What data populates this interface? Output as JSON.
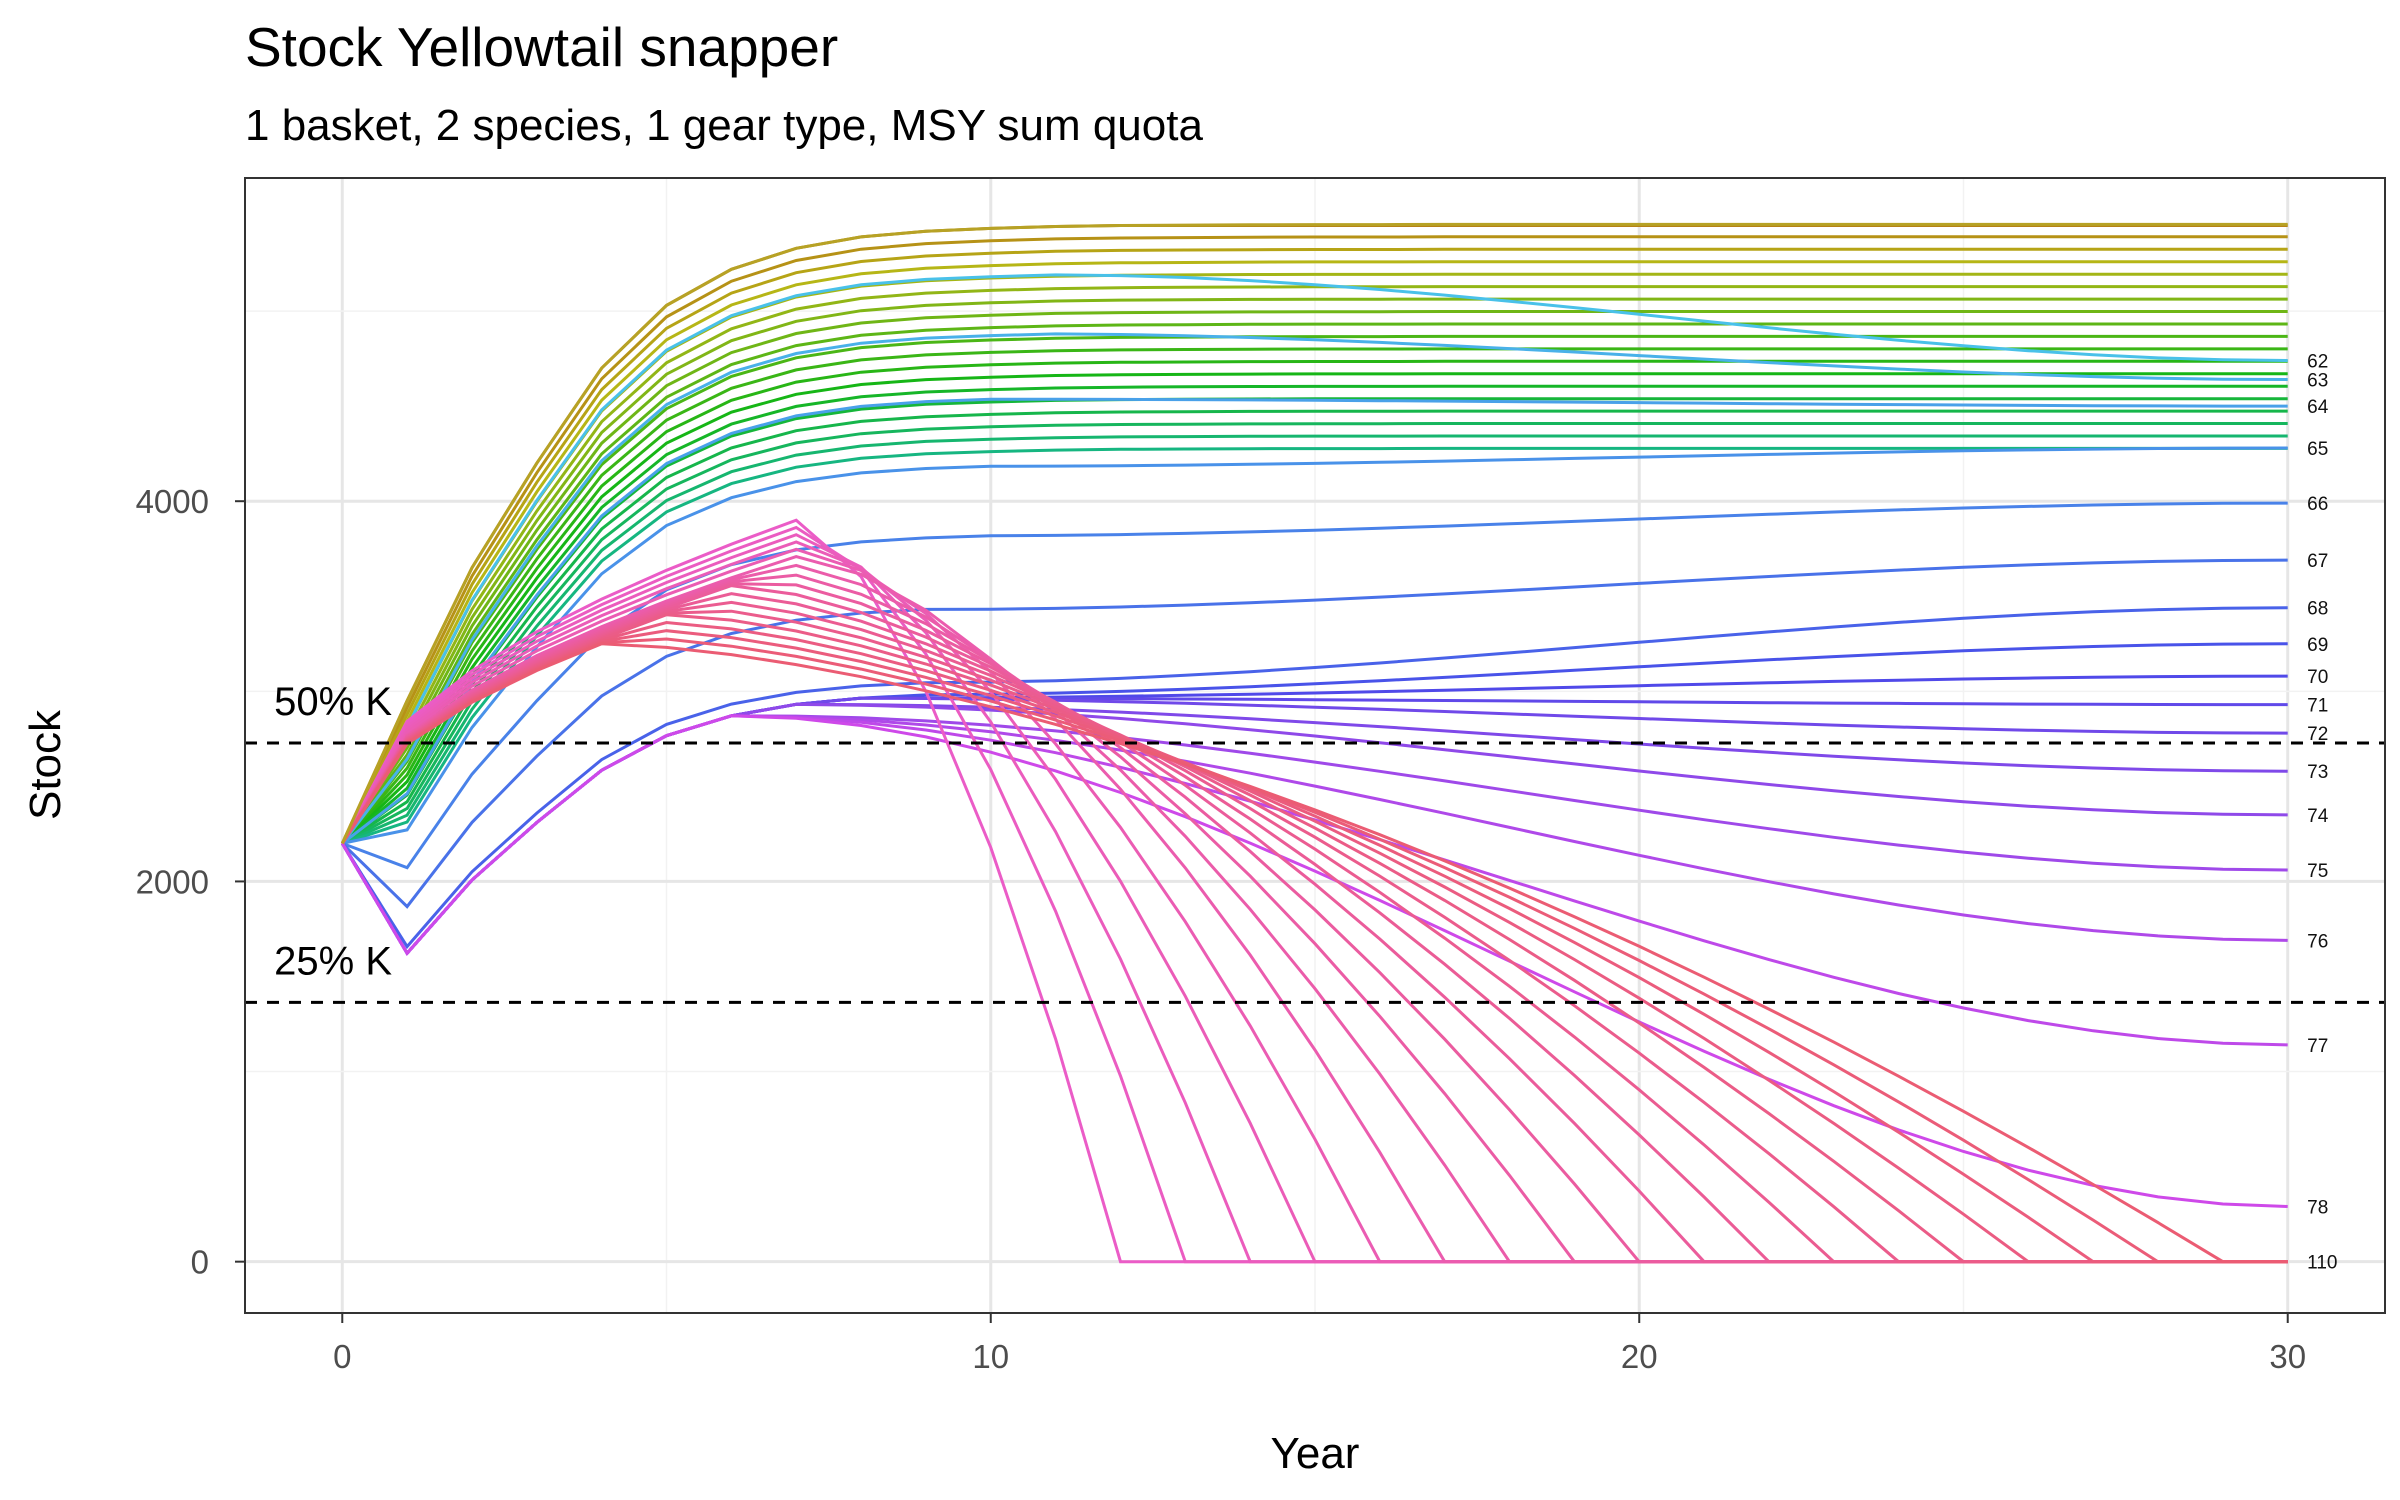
{
  "chart_data": {
    "type": "line",
    "title": "Stock Yellowtail snapper",
    "subtitle": "1 basket, 2 species, 1 gear type, MSY sum quota",
    "xlabel": "Year",
    "ylabel": "Stock",
    "xlim": [
      -1.5,
      31.5
    ],
    "ylim": [
      -270,
      5700
    ],
    "x_ticks": [
      0,
      10,
      20,
      30
    ],
    "y_ticks": [
      0,
      2000,
      4000
    ],
    "grid": true,
    "legend": "none (direct end-of-line labels)",
    "start_stock": 2200,
    "capacity_curve": [
      2200,
      2950,
      3650,
      4200,
      4700,
      5030,
      5220,
      5330,
      5390,
      5420,
      5435,
      5445,
      5450,
      5452,
      5454,
      5455,
      5455,
      5456,
      5456,
      5456,
      5456,
      5456,
      5456,
      5456,
      5456,
      5456,
      5456,
      5456,
      5456,
      5456,
      5456
    ],
    "reference_lines": [
      {
        "label": "50% K",
        "value": 2728,
        "style": "dashed"
      },
      {
        "label": "25% K",
        "value": 1364,
        "style": "dashed"
      }
    ],
    "series_labels": [
      {
        "name": "62",
        "end_value": 4740
      },
      {
        "name": "63",
        "end_value": 4640
      },
      {
        "name": "64",
        "end_value": 4500
      },
      {
        "name": "65",
        "end_value": 4280
      },
      {
        "name": "66",
        "end_value": 3990
      },
      {
        "name": "67",
        "end_value": 3690
      },
      {
        "name": "68",
        "end_value": 3440
      },
      {
        "name": "69",
        "end_value": 3250
      },
      {
        "name": "70",
        "end_value": 3080
      },
      {
        "name": "71",
        "end_value": 2930
      },
      {
        "name": "72",
        "end_value": 2780
      },
      {
        "name": "73",
        "end_value": 2580
      },
      {
        "name": "74",
        "end_value": 2350
      },
      {
        "name": "75",
        "end_value": 2060
      },
      {
        "name": "76",
        "end_value": 1690
      },
      {
        "name": "77",
        "end_value": 1140
      },
      {
        "name": "78",
        "end_value": 290
      },
      {
        "name": "110",
        "end_value": 0
      }
    ],
    "collapsed_series": [
      {
        "collapse_year": 12,
        "end_value": 0
      },
      {
        "collapse_year": 13,
        "end_value": 0
      },
      {
        "collapse_year": 14,
        "end_value": 0
      },
      {
        "collapse_year": 15,
        "end_value": 0
      },
      {
        "collapse_year": 16,
        "end_value": 0
      },
      {
        "collapse_year": 17,
        "end_value": 0
      },
      {
        "collapse_year": 18,
        "end_value": 0
      },
      {
        "collapse_year": 19,
        "end_value": 0
      },
      {
        "collapse_year": 20,
        "end_value": 0
      },
      {
        "collapse_year": 21,
        "end_value": 0
      },
      {
        "collapse_year": 22,
        "end_value": 0
      },
      {
        "collapse_year": 23,
        "end_value": 0
      },
      {
        "collapse_year": 24,
        "end_value": 0
      },
      {
        "collapse_year": 25,
        "end_value": 0
      },
      {
        "collapse_year": 26,
        "end_value": 0
      },
      {
        "collapse_year": 27,
        "end_value": 0
      },
      {
        "collapse_year": 28,
        "end_value": 0
      },
      {
        "collapse_year": 29,
        "end_value": 0
      }
    ],
    "upper_band_end_values": [
      5450,
      5430,
      5400,
      5370,
      5340,
      5300,
      5260,
      5220,
      5180,
      5140,
      5100,
      5060,
      5020,
      4980,
      4940,
      4900,
      4860,
      4820,
      4790
    ],
    "colors": {
      "palette": "ggplot hue (red to green to blue to pink)",
      "reference_line": "#000000"
    }
  }
}
